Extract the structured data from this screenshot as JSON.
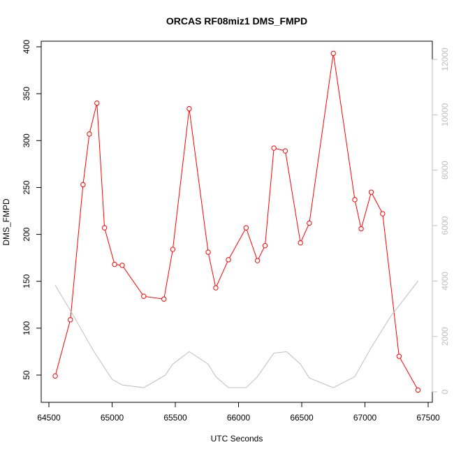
{
  "chart_data": {
    "type": "line",
    "title": "ORCAS RF08miz1 DMS_FMPD",
    "xlabel": "UTC Seconds",
    "ylabel": "DMS_FMPD",
    "xlim": [
      64500,
      67500
    ],
    "ylim": [
      40,
      400
    ],
    "y2lim": [
      0,
      12000
    ],
    "x_ticks": [
      64500,
      65000,
      65500,
      66000,
      66500,
      67000,
      67500
    ],
    "y_ticks": [
      50,
      100,
      150,
      200,
      250,
      300,
      350,
      400
    ],
    "y2_ticks": [
      0,
      2000,
      4000,
      6000,
      8000,
      10000,
      12000
    ],
    "grid": false,
    "legend": "none",
    "colors": {
      "primary": "#ff0000",
      "secondary": "#bebebe",
      "axis": "#000000"
    },
    "series": [
      {
        "axis": "left",
        "style": "line-points",
        "color": "#ff0000",
        "x": [
          64550,
          64670,
          64770,
          64820,
          64880,
          64940,
          65020,
          65080,
          65250,
          65410,
          65480,
          65610,
          65760,
          65820,
          65920,
          66060,
          66150,
          66210,
          66280,
          66370,
          66490,
          66560,
          66750,
          66920,
          66970,
          67050,
          67140,
          67270,
          67420
        ],
        "y": [
          49,
          109,
          253,
          307,
          340,
          207,
          168,
          167,
          134,
          131,
          184,
          334,
          181,
          143,
          173,
          207,
          172,
          188,
          292,
          289,
          191,
          212,
          393,
          237,
          206,
          245,
          222,
          70,
          34
        ]
      },
      {
        "axis": "right",
        "style": "line",
        "color": "#bebebe",
        "x": [
          64550,
          64700,
          64850,
          65000,
          65080,
          65250,
          65420,
          65480,
          65610,
          65760,
          65820,
          65920,
          66060,
          66150,
          66280,
          66380,
          66490,
          66560,
          66750,
          66920,
          67050,
          67200,
          67420
        ],
        "y": [
          3850,
          2700,
          1500,
          450,
          250,
          150,
          600,
          1000,
          1450,
          1000,
          550,
          150,
          150,
          550,
          1400,
          1450,
          1000,
          500,
          150,
          550,
          1600,
          2700,
          4000
        ]
      }
    ]
  }
}
